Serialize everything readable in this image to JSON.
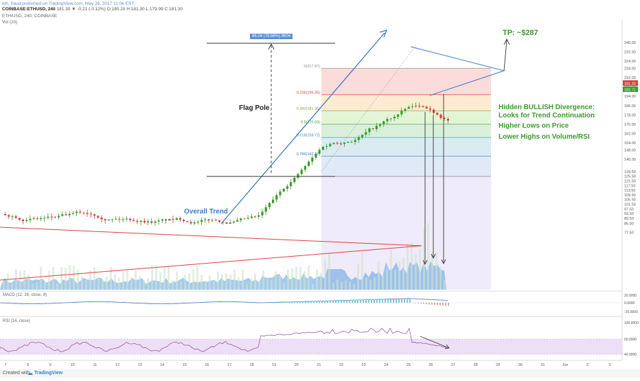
{
  "header": {
    "publisher": "eth_fraud published on TradingView.com, May 26, 2017 11:06 EST",
    "symbol": "COINBASE:ETHUSD, 240",
    "values": "181.30 ▼ -0.21 (-0.12%) O:180.20 H:181.30 L:179.99 C:181.30",
    "line2": "ETH/USD, 240, COINBASE",
    "vol": "Vol (20)"
  },
  "annotations": {
    "tp": "TP: ~$287",
    "flag_pole": "Flag Pole",
    "overall_trend": "Overall Trend",
    "pole_measure": "96.04 (78.66%) 9604",
    "divergence": [
      "Hidden  BULLISH Divergence:",
      "Looks for Trend Continuation",
      "Higher Lows on Price",
      "Lower Highs on Volume/RSI"
    ]
  },
  "indicators": {
    "macd_label": "MACD (12, 26, close, 9)",
    "rsi_label": "RSI (14, close)"
  },
  "footer": {
    "created": "Created with",
    "brand": "TradingView"
  },
  "colors": {
    "up": "#3a9a2a",
    "down": "#d0413d",
    "trend_line": "#3a78c9",
    "triangle_line": "#e03c3c",
    "volume": "#5a9ee0",
    "rsi_band": "#eddff5",
    "rsi_line": "#8a3fa8"
  },
  "chart_data": {
    "type": "candlestick",
    "symbol": "ETHUSD",
    "exchange": "COINBASE",
    "interval": "240",
    "x_ticks": [
      "7",
      "8",
      "9",
      "10",
      "11",
      "12",
      "13",
      "14",
      "15",
      "16",
      "17",
      "18",
      "19",
      "20",
      "21",
      "22",
      "23",
      "24",
      "25",
      "26",
      "27",
      "28",
      "29",
      "30",
      "31",
      "Jun",
      "2",
      "3"
    ],
    "y_ticks": [
      77.5,
      85.0,
      89.5,
      93.5,
      97.5,
      101.5,
      105.5,
      109.5,
      113.5,
      117.5,
      121.5,
      125.5,
      129.5,
      140.0,
      148.0,
      154.0,
      162.0,
      170.0,
      178.0,
      186.0,
      194.0,
      202.0,
      210.0,
      218.0,
      224.0,
      232.0,
      240.0
    ],
    "price_labels": [
      181.3,
      182.71
    ],
    "fib_levels": [
      {
        "label": "0(217.97)",
        "value": 217.97,
        "color": "#888888"
      },
      {
        "label": "0.236(195.35)",
        "value": 195.35,
        "color": "#d0413d"
      },
      {
        "label": "0.382(181.35)",
        "value": 181.35,
        "color": "#7aa53a"
      },
      {
        "label": "0.5(170.03)",
        "value": 170.03,
        "color": "#3a9a2a"
      },
      {
        "label": "0.618(158.72)",
        "value": 158.72,
        "color": "#3a9a9a"
      },
      {
        "label": "0.786(142.77)",
        "value": 142.77,
        "color": "#3a78c9"
      }
    ],
    "macd_ticks": [
      "20.0000",
      "0.0000",
      "-20.0000"
    ],
    "rsi_ticks": [
      "100.0000",
      "60.0000",
      "40.0000"
    ]
  }
}
